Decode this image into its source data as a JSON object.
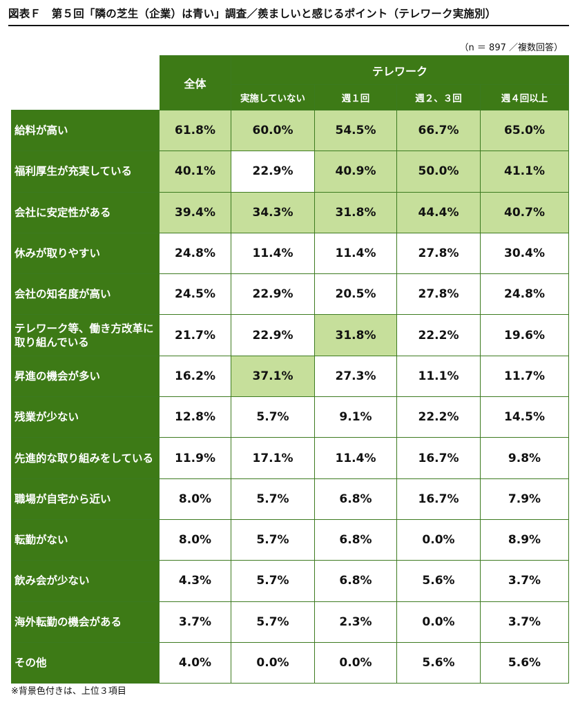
{
  "title": "図表Ｆ　第５回「隣の芝生（企業）は青い」調査／羨ましいと感じるポイント（テレワーク実施別）",
  "note": "（n ＝ 897 ／複数回答）",
  "footnote": "※背景色付きは、上位３項目",
  "colors": {
    "header_green": "#3d7a16",
    "highlight": "#c6df9b"
  },
  "chart_data": {
    "type": "table",
    "group_header": "テレワーク",
    "columns": [
      "全体",
      "実施していない",
      "週１回",
      "週２、３回",
      "週４回以上"
    ],
    "rows": [
      {
        "label": "給料が高い",
        "values": [
          "61.8%",
          "60.0%",
          "54.5%",
          "66.7%",
          "65.0%"
        ],
        "highlight": [
          true,
          true,
          true,
          true,
          true
        ]
      },
      {
        "label": "福利厚生が充実している",
        "values": [
          "40.1%",
          "22.9%",
          "40.9%",
          "50.0%",
          "41.1%"
        ],
        "highlight": [
          true,
          false,
          true,
          true,
          true
        ]
      },
      {
        "label": "会社に安定性がある",
        "values": [
          "39.4%",
          "34.3%",
          "31.8%",
          "44.4%",
          "40.7%"
        ],
        "highlight": [
          true,
          true,
          true,
          true,
          true
        ]
      },
      {
        "label": "休みが取りやすい",
        "values": [
          "24.8%",
          "11.4%",
          "11.4%",
          "27.8%",
          "30.4%"
        ],
        "highlight": [
          false,
          false,
          false,
          false,
          false
        ]
      },
      {
        "label": "会社の知名度が高い",
        "values": [
          "24.5%",
          "22.9%",
          "20.5%",
          "27.8%",
          "24.8%"
        ],
        "highlight": [
          false,
          false,
          false,
          false,
          false
        ]
      },
      {
        "label": "テレワーク等、働き方改革に取り組んでいる",
        "values": [
          "21.7%",
          "22.9%",
          "31.8%",
          "22.2%",
          "19.6%"
        ],
        "highlight": [
          false,
          false,
          true,
          false,
          false
        ]
      },
      {
        "label": "昇進の機会が多い",
        "values": [
          "16.2%",
          "37.1%",
          "27.3%",
          "11.1%",
          "11.7%"
        ],
        "highlight": [
          false,
          true,
          false,
          false,
          false
        ]
      },
      {
        "label": "残業が少ない",
        "values": [
          "12.8%",
          "5.7%",
          "9.1%",
          "22.2%",
          "14.5%"
        ],
        "highlight": [
          false,
          false,
          false,
          false,
          false
        ]
      },
      {
        "label": "先進的な取り組みをしている",
        "values": [
          "11.9%",
          "17.1%",
          "11.4%",
          "16.7%",
          "9.8%"
        ],
        "highlight": [
          false,
          false,
          false,
          false,
          false
        ]
      },
      {
        "label": "職場が自宅から近い",
        "values": [
          "8.0%",
          "5.7%",
          "6.8%",
          "16.7%",
          "7.9%"
        ],
        "highlight": [
          false,
          false,
          false,
          false,
          false
        ]
      },
      {
        "label": "転勤がない",
        "values": [
          "8.0%",
          "5.7%",
          "6.8%",
          "0.0%",
          "8.9%"
        ],
        "highlight": [
          false,
          false,
          false,
          false,
          false
        ]
      },
      {
        "label": "飲み会が少ない",
        "values": [
          "4.3%",
          "5.7%",
          "6.8%",
          "5.6%",
          "3.7%"
        ],
        "highlight": [
          false,
          false,
          false,
          false,
          false
        ]
      },
      {
        "label": "海外転勤の機会がある",
        "values": [
          "3.7%",
          "5.7%",
          "2.3%",
          "0.0%",
          "3.7%"
        ],
        "highlight": [
          false,
          false,
          false,
          false,
          false
        ]
      },
      {
        "label": "その他",
        "values": [
          "4.0%",
          "0.0%",
          "0.0%",
          "5.6%",
          "5.6%"
        ],
        "highlight": [
          false,
          false,
          false,
          false,
          false
        ]
      }
    ]
  }
}
